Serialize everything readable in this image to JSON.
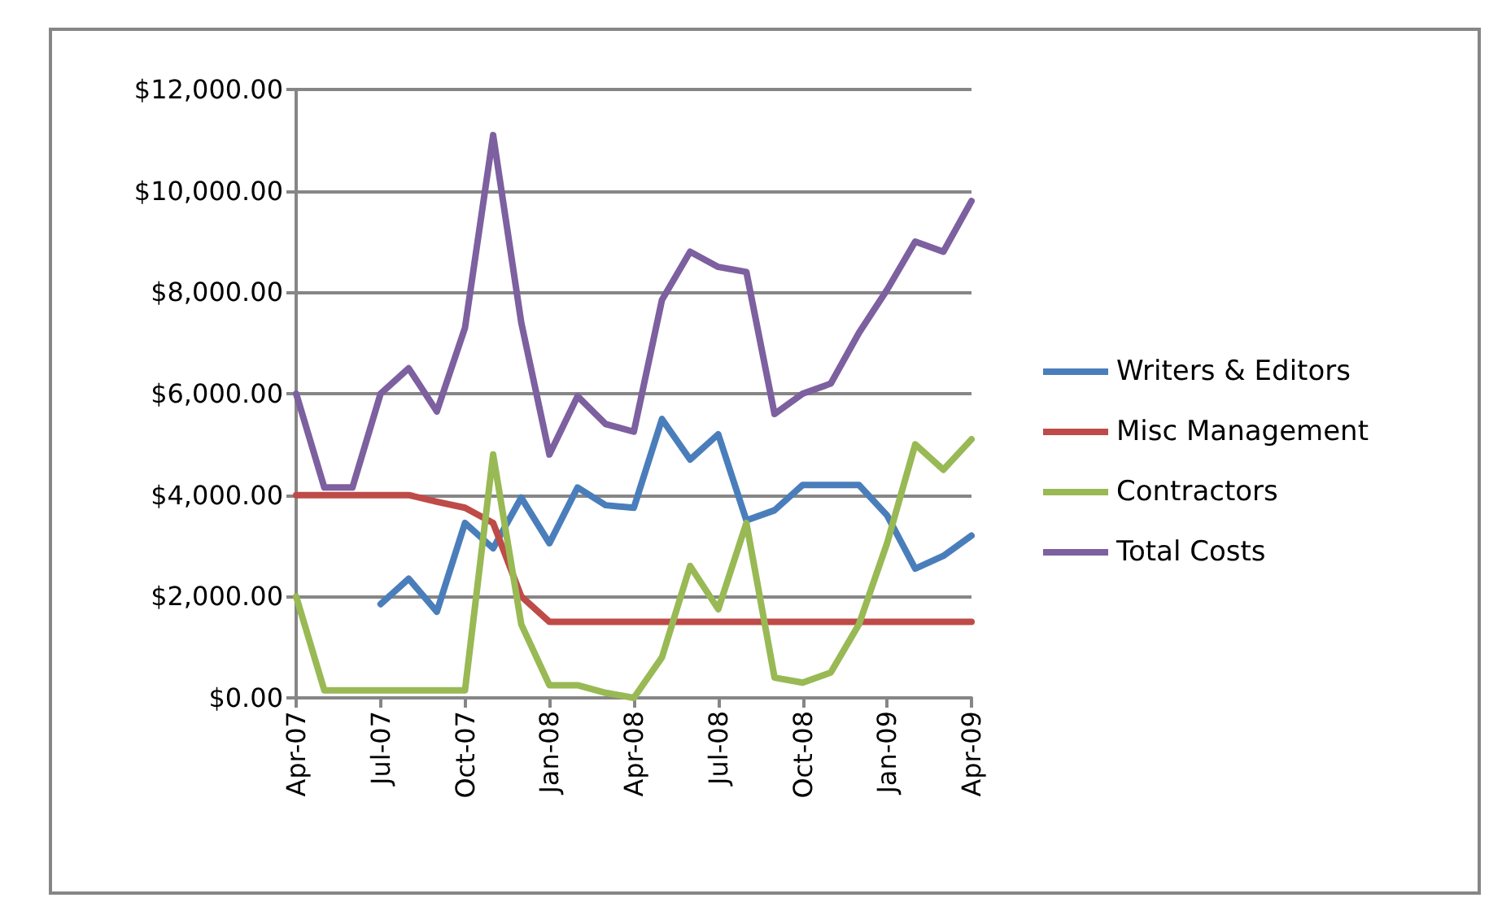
{
  "chart_data": {
    "type": "line",
    "categories": [
      "Apr-07",
      null,
      null,
      "Jul-07",
      null,
      null,
      "Oct-07",
      null,
      null,
      "Jan-08",
      null,
      null,
      "Apr-08",
      null,
      null,
      "Jul-08",
      null,
      null,
      "Oct-08",
      null,
      null,
      "Jan-09",
      null,
      null,
      "Apr-09"
    ],
    "series": [
      {
        "name": "Writers & Editors",
        "color": "#4a7ebb",
        "values": [
          null,
          null,
          null,
          1850,
          2350,
          1700,
          3450,
          2950,
          3950,
          3050,
          4150,
          3800,
          3750,
          5500,
          4700,
          5200,
          3500,
          3700,
          4200,
          4200,
          4200,
          3600,
          2550,
          2800,
          3200
        ]
      },
      {
        "name": "Misc Management",
        "color": "#be4b48",
        "values": [
          4000,
          4000,
          4000,
          4000,
          4000,
          3870,
          3750,
          3450,
          2000,
          1500,
          1500,
          1500,
          1500,
          1500,
          1500,
          1500,
          1500,
          1500,
          1500,
          1500,
          1500,
          1500,
          1500,
          1500,
          1500
        ]
      },
      {
        "name": "Contractors",
        "color": "#98b954",
        "values": [
          2000,
          150,
          150,
          150,
          150,
          150,
          150,
          4800,
          1450,
          250,
          250,
          100,
          0,
          800,
          2600,
          1750,
          3450,
          400,
          300,
          500,
          1450,
          3050,
          5000,
          4500,
          5100
        ]
      },
      {
        "name": "Total Costs",
        "color": "#7d60a0",
        "values": [
          6000,
          4150,
          4150,
          6000,
          6500,
          5650,
          7300,
          11100,
          7400,
          4800,
          5950,
          5400,
          5250,
          7850,
          8800,
          8500,
          8400,
          5600,
          6000,
          6200,
          7200,
          8050,
          9000,
          8800,
          9800
        ]
      }
    ],
    "ylim": [
      0,
      12000
    ],
    "yticks": [
      {
        "value": 0,
        "label": "$0.00"
      },
      {
        "value": 2000,
        "label": "$2,000.00"
      },
      {
        "value": 4000,
        "label": "$4,000.00"
      },
      {
        "value": 6000,
        "label": "$6,000.00"
      },
      {
        "value": 8000,
        "label": "$8,000.00"
      },
      {
        "value": 10000,
        "label": "$10,000.00"
      },
      {
        "value": 12000,
        "label": "$12,000.00"
      }
    ],
    "grid": "y",
    "legend": "right",
    "marker": "none",
    "line_style": "solid"
  }
}
